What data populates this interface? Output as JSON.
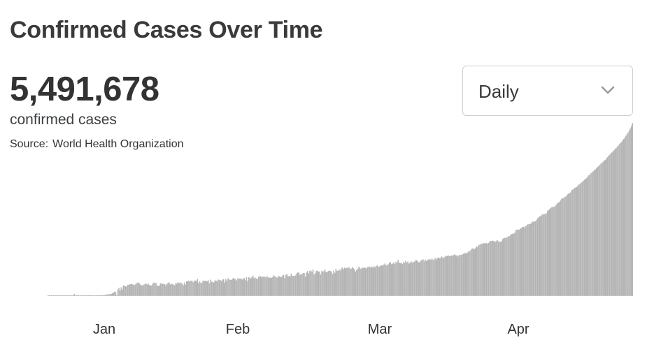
{
  "header": {
    "title": "Confirmed Cases Over Time",
    "total": "5,491,678",
    "total_label": "confirmed cases",
    "source_label": "Source:",
    "source_name": "World Health Organization"
  },
  "dropdown": {
    "selected": "Daily",
    "icon": "chevron-down-icon"
  },
  "colors": {
    "bar": "#b4b4b4",
    "text": "#3a3a3a"
  },
  "chart_data": {
    "type": "bar",
    "xlabel": "",
    "ylabel": "",
    "grid": false,
    "legend": "none",
    "x_tick_labels": [
      "Jan",
      "Feb",
      "Mar",
      "Apr"
    ],
    "values": [
      2,
      2,
      2,
      2,
      3,
      4,
      6,
      8,
      10,
      11,
      13,
      13,
      14,
      15,
      17,
      19,
      21,
      22,
      21,
      20,
      19,
      17,
      16,
      15,
      71,
      14,
      11,
      9,
      8,
      7,
      6,
      2,
      4,
      4,
      5,
      4,
      5,
      6,
      7,
      8,
      9,
      10,
      11,
      12,
      13,
      15,
      17,
      18,
      20,
      22,
      24,
      27,
      33,
      41,
      51,
      56,
      60,
      58,
      74,
      89,
      112,
      141,
      126,
      8,
      210,
      255,
      168,
      275,
      206,
      327,
      327,
      307,
      296,
      352,
      357,
      369,
      378,
      378,
      362,
      337,
      362,
      397,
      410,
      426,
      389,
      349,
      333,
      339,
      362,
      387,
      387,
      360,
      389,
      341,
      330,
      336,
      386,
      426,
      411,
      408,
      333,
      317,
      322,
      389,
      405,
      377,
      384,
      371,
      335,
      384,
      412,
      433,
      366,
      390,
      375,
      356,
      343,
      398,
      386,
      438,
      399,
      426,
      411,
      386,
      341,
      426,
      361,
      461,
      463,
      479,
      458,
      476,
      486,
      433,
      474,
      488,
      467,
      530,
      400,
      457,
      426,
      404,
      480,
      475,
      477,
      474,
      463,
      495,
      398,
      514,
      454,
      436,
      428,
      491,
      482,
      468,
      520,
      502,
      502,
      463,
      520,
      523,
      426,
      528,
      478,
      563,
      519,
      510,
      507,
      538,
      572,
      530,
      528,
      484,
      559,
      542,
      553,
      542,
      519,
      547,
      560,
      496,
      592,
      467,
      592,
      577,
      549,
      596,
      635,
      557,
      581,
      546,
      528,
      599,
      617,
      625,
      584,
      605,
      608,
      603,
      582,
      618,
      588,
      569,
      584,
      569,
      591,
      650,
      617,
      600,
      575,
      621,
      612,
      602,
      592,
      643,
      661,
      567,
      661,
      695,
      625,
      624,
      614,
      702,
      637,
      631,
      621,
      647,
      707,
      735,
      734,
      662,
      692,
      692,
      725,
      722,
      608,
      735,
      787,
      701,
      782,
      801,
      757,
      827,
      672,
      719,
      792,
      790,
      763,
      766,
      672,
      795,
      758,
      781,
      831,
      747,
      748,
      785,
      797,
      782,
      768,
      683,
      797,
      730,
      851,
      788,
      794,
      826,
      804,
      866,
      890,
      833,
      888,
      868,
      882,
      880,
      908,
      856,
      861,
      904,
      870,
      832,
      765,
      816,
      854,
      917,
      878,
      846,
      889,
      877,
      898,
      878,
      865,
      907,
      917,
      911,
      895,
      922,
      883,
      936,
      899,
      942,
      957,
      918,
      924,
      948,
      968,
      947,
      989,
      1020,
      959,
      972,
      994,
      1036,
      1063,
      1000,
      1014,
      1052,
      1000,
      1064,
      1047,
      1129,
      1049,
      1026,
      1038,
      1002,
      1076,
      1035,
      1104,
      1052,
      1082,
      1018,
      1041,
      1090,
      1041,
      1069,
      1074,
      1118,
      1117,
      1094,
      1044,
      1073,
      1107,
      1131,
      1147,
      1084,
      1142,
      1094,
      1133,
      1143,
      1151,
      1135,
      1168,
      1146,
      1116,
      1193,
      1143,
      1186,
      1207,
      1176,
      1193,
      1238,
      1207,
      1195,
      1231,
      1262,
      1247,
      1276,
      1243,
      1244,
      1270,
      1258,
      1279,
      1304,
      1276,
      1268,
      1239,
      1284,
      1280,
      1290,
      1301,
      1321,
      1344,
      1328,
      1351,
      1370,
      1398,
      1411,
      1451,
      1487,
      1487,
      1461,
      1501,
      1545,
      1532,
      1591,
      1602,
      1625,
      1632,
      1646,
      1651,
      1652,
      1656,
      1632,
      1659,
      1700,
      1720,
      1720,
      1735,
      1713,
      1694,
      1717,
      1747,
      1705,
      1702,
      1683,
      1717,
      1779,
      1813,
      1822,
      1812,
      1836,
      1868,
      1869,
      1899,
      1936,
      1942,
      1945,
      1974,
      2050,
      2076,
      2064,
      2074,
      2102,
      2115,
      2160,
      2161,
      2141,
      2181,
      2202,
      2239,
      2244,
      2256,
      2265,
      2327,
      2317,
      2330,
      2330,
      2375,
      2423,
      2461,
      2484,
      2501,
      2542,
      2545,
      2567,
      2551,
      2583,
      2652,
      2688,
      2709,
      2752,
      2770,
      2782,
      2788,
      2803,
      2854,
      2893,
      2919,
      2936,
      2983,
      3038,
      3052,
      3060,
      3097,
      3112,
      3154,
      3196,
      3201,
      3232,
      3287,
      3323,
      3334,
      3379,
      3392,
      3406,
      3454,
      3481,
      3510,
      3538,
      3569,
      3599,
      3627,
      3664,
      3686,
      3734,
      3769,
      3789,
      3836,
      3868,
      3893,
      3939,
      3951,
      3993,
      4031,
      4056,
      4094,
      4126,
      4158,
      4191,
      4225,
      4252,
      4292,
      4331,
      4373,
      4406,
      4446,
      4478,
      4510,
      4547,
      4587,
      4620,
      4664,
      4695,
      4741,
      4778,
      4806,
      4858,
      4903,
      4950,
      4999,
      5056,
      5106,
      5165,
      5232,
      5308,
      5400
    ]
  }
}
